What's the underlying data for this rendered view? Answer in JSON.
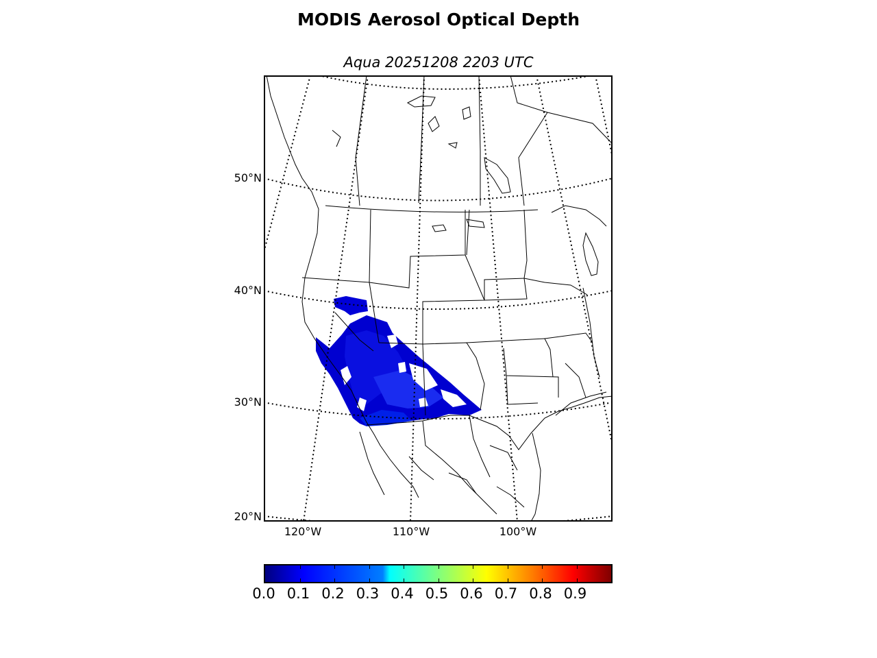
{
  "figure": {
    "title": "MODIS Aerosol Optical Depth",
    "subtitle": "Aqua 20251208 2203 UTC"
  },
  "map": {
    "latitude_labels": [
      "50°N",
      "40°N",
      "30°N",
      "20°N"
    ],
    "longitude_labels": [
      "120°W",
      "110°W",
      "100°W"
    ],
    "data_region": "aerosol retrievals over southwestern United States and northwestern Mexico",
    "data_value_range": [
      0.0,
      0.2
    ]
  },
  "colorbar": {
    "colormap": "jet",
    "range": [
      0.0,
      1.0
    ],
    "tick_labels": [
      "0.0",
      "0.1",
      "0.2",
      "0.3",
      "0.4",
      "0.5",
      "0.6",
      "0.7",
      "0.8",
      "0.9"
    ],
    "colors": {
      "low": "#00007f",
      "mid": "#7fff7f",
      "high": "#7f0000"
    }
  }
}
